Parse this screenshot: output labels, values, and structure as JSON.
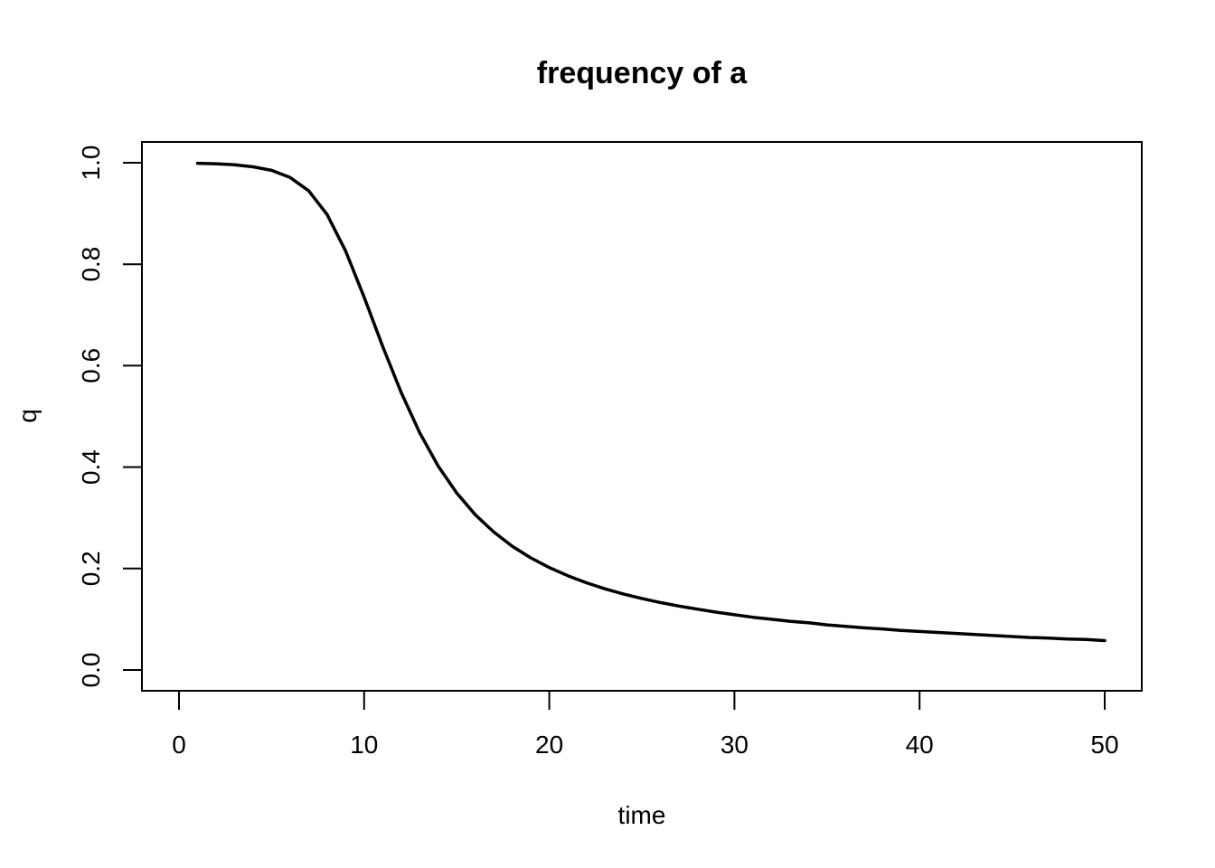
{
  "chart_data": {
    "type": "line",
    "title": "frequency of a",
    "xlabel": "time",
    "ylabel": "q",
    "xlim": [
      0,
      50
    ],
    "ylim": [
      0.0,
      1.0
    ],
    "x_ticks": [
      0,
      10,
      20,
      30,
      40,
      50
    ],
    "x_tick_labels": [
      "0",
      "10",
      "20",
      "30",
      "40",
      "50"
    ],
    "y_ticks": [
      0.0,
      0.2,
      0.4,
      0.6,
      0.8,
      1.0
    ],
    "y_tick_labels": [
      "0.0",
      "0.2",
      "0.4",
      "0.6",
      "0.8",
      "1.0"
    ],
    "grid": false,
    "series": [
      {
        "name": "q",
        "color": "#000000",
        "x": [
          1,
          2,
          3,
          4,
          5,
          6,
          7,
          8,
          9,
          10,
          11,
          12,
          13,
          14,
          15,
          16,
          17,
          18,
          19,
          20,
          21,
          22,
          23,
          24,
          25,
          26,
          27,
          28,
          29,
          30,
          31,
          32,
          33,
          34,
          35,
          36,
          37,
          38,
          39,
          40,
          41,
          42,
          43,
          44,
          45,
          46,
          47,
          48,
          49,
          50
        ],
        "values": [
          0.999,
          0.998,
          0.996,
          0.992,
          0.985,
          0.971,
          0.945,
          0.898,
          0.826,
          0.735,
          0.638,
          0.547,
          0.468,
          0.402,
          0.349,
          0.306,
          0.272,
          0.244,
          0.221,
          0.202,
          0.186,
          0.172,
          0.16,
          0.15,
          0.141,
          0.133,
          0.126,
          0.12,
          0.114,
          0.109,
          0.104,
          0.1,
          0.096,
          0.093,
          0.089,
          0.086,
          0.083,
          0.081,
          0.078,
          0.076,
          0.074,
          0.072,
          0.07,
          0.068,
          0.066,
          0.064,
          0.063,
          0.061,
          0.06,
          0.058
        ]
      }
    ]
  }
}
